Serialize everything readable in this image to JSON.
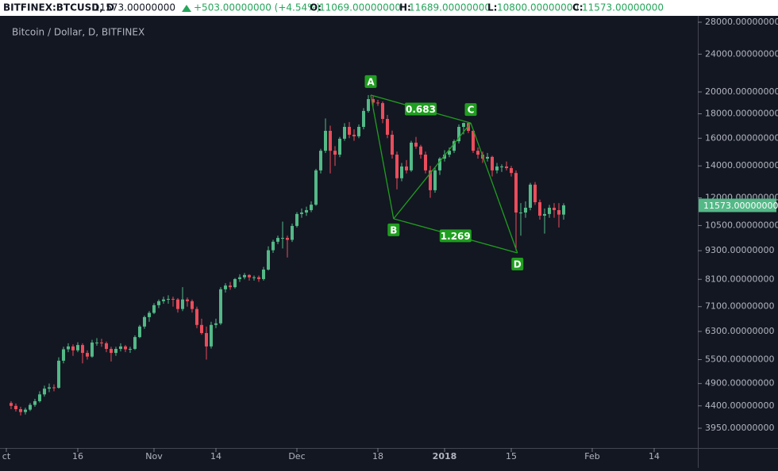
{
  "chart_data": {
    "type": "candlestick",
    "symbol": "BITFINEX:BTCUSD, D",
    "last": "11573.00000000",
    "change": "+503.00000000 (+4.54%)",
    "ohlc_header": [
      {
        "label": "O:",
        "value": "11069.00000000"
      },
      {
        "label": "H:",
        "value": "11689.00000000"
      },
      {
        "label": "L:",
        "value": "10800.00000000"
      },
      {
        "label": "C:",
        "value": "11573.00000000"
      }
    ],
    "title": "Bitcoin / Dollar, D, BITFINEX",
    "log": true,
    "up_color": "#53b987",
    "down_color": "#eb4d5c",
    "xlim": [
      -1.33,
      145
    ],
    "ylim": [
      3590,
      28870
    ],
    "xticks": [
      {
        "value": 0,
        "label": "ct"
      },
      {
        "value": 15,
        "label": "16"
      },
      {
        "value": 31,
        "label": "Nov"
      },
      {
        "value": 44,
        "label": "14"
      },
      {
        "value": 61,
        "label": "Dec"
      },
      {
        "value": 78,
        "label": "18"
      },
      {
        "value": 92,
        "label": "2018"
      },
      {
        "value": 106,
        "label": "15"
      },
      {
        "value": 123,
        "label": "Feb"
      },
      {
        "value": 136,
        "label": "14"
      }
    ],
    "yticks": [
      {
        "value": 28000,
        "label": "28000.00000000"
      },
      {
        "value": 24000,
        "label": "24000.00000000"
      },
      {
        "value": 20000,
        "label": "20000.00000000"
      },
      {
        "value": 18000,
        "label": "18000.00000000"
      },
      {
        "value": 16000,
        "label": "16000.00000000"
      },
      {
        "value": 14000,
        "label": "14000.00000000"
      },
      {
        "value": 12000,
        "label": "12000.00000000"
      },
      {
        "value": 10500,
        "label": "10500.00000000"
      },
      {
        "value": 9300,
        "label": "9300.00000000"
      },
      {
        "value": 8100,
        "label": "8100.00000000"
      },
      {
        "value": 7100,
        "label": "7100.00000000"
      },
      {
        "value": 6300,
        "label": "6300.00000000"
      },
      {
        "value": 5500,
        "label": "5500.00000000"
      },
      {
        "value": 4900,
        "label": "4900.00000000"
      },
      {
        "value": 4400,
        "label": "4400.00000000"
      },
      {
        "value": 3950,
        "label": "3950.00000000"
      }
    ],
    "last_price_tag": {
      "value": 11573,
      "label": "11573.00000000",
      "color": "#53b987"
    },
    "x": [
      1,
      2,
      3,
      4,
      5,
      6,
      7,
      8,
      9,
      10,
      11,
      12,
      13,
      14,
      15,
      16,
      17,
      18,
      19,
      20,
      21,
      22,
      23,
      24,
      25,
      26,
      27,
      28,
      29,
      30,
      31,
      32,
      33,
      34,
      35,
      36,
      37,
      38,
      39,
      40,
      41,
      42,
      43,
      44,
      45,
      46,
      47,
      48,
      49,
      50,
      51,
      52,
      53,
      54,
      55,
      56,
      57,
      58,
      59,
      60,
      61,
      62,
      63,
      64,
      65,
      66,
      67,
      68,
      69,
      70,
      71,
      72,
      73,
      74,
      75,
      76,
      77,
      78,
      79,
      80,
      81,
      82,
      83,
      84,
      85,
      86,
      87,
      88,
      89,
      90,
      91,
      92,
      93,
      94,
      95,
      96,
      97,
      98,
      99,
      100,
      101,
      102,
      103,
      104,
      105,
      106,
      107,
      108,
      109,
      110,
      111,
      112,
      113,
      114,
      115,
      116,
      117
    ],
    "ohlc": [
      [
        4460,
        4500,
        4330,
        4400
      ],
      [
        4400,
        4450,
        4280,
        4330
      ],
      [
        4330,
        4380,
        4200,
        4270
      ],
      [
        4270,
        4360,
        4220,
        4320
      ],
      [
        4320,
        4460,
        4290,
        4420
      ],
      [
        4420,
        4550,
        4380,
        4500
      ],
      [
        4500,
        4720,
        4470,
        4650
      ],
      [
        4650,
        4850,
        4600,
        4780
      ],
      [
        4780,
        4900,
        4700,
        4810
      ],
      [
        4810,
        4880,
        4720,
        4800
      ],
      [
        4800,
        5560,
        4780,
        5470
      ],
      [
        5470,
        5850,
        5400,
        5780
      ],
      [
        5780,
        5950,
        5700,
        5860
      ],
      [
        5860,
        5920,
        5600,
        5750
      ],
      [
        5750,
        5980,
        5700,
        5900
      ],
      [
        5900,
        5950,
        5400,
        5680
      ],
      [
        5680,
        5750,
        5500,
        5580
      ],
      [
        5580,
        6050,
        5550,
        5970
      ],
      [
        5970,
        6100,
        5880,
        5970
      ],
      [
        5970,
        6080,
        5850,
        5950
      ],
      [
        5950,
        6000,
        5700,
        5790
      ],
      [
        5790,
        5850,
        5450,
        5680
      ],
      [
        5680,
        5850,
        5600,
        5790
      ],
      [
        5790,
        5950,
        5720,
        5860
      ],
      [
        5860,
        5900,
        5700,
        5780
      ],
      [
        5780,
        5850,
        5680,
        5790
      ],
      [
        5790,
        6180,
        5760,
        6130
      ],
      [
        6130,
        6500,
        6100,
        6450
      ],
      [
        6450,
        6800,
        6380,
        6750
      ],
      [
        6750,
        6950,
        6600,
        6890
      ],
      [
        6890,
        7220,
        6850,
        7150
      ],
      [
        7150,
        7350,
        7050,
        7290
      ],
      [
        7290,
        7450,
        7200,
        7350
      ],
      [
        7350,
        7500,
        7200,
        7370
      ],
      [
        7370,
        7450,
        7100,
        7350
      ],
      [
        7350,
        7400,
        6900,
        7020
      ],
      [
        7020,
        7800,
        6950,
        7350
      ],
      [
        7350,
        7420,
        7100,
        7290
      ],
      [
        7290,
        7350,
        6900,
        7020
      ],
      [
        7020,
        7100,
        6400,
        6500
      ],
      [
        6500,
        6700,
        6200,
        6250
      ],
      [
        6250,
        6450,
        5500,
        5860
      ],
      [
        5860,
        6600,
        5800,
        6500
      ],
      [
        6500,
        6700,
        6400,
        6550
      ],
      [
        6550,
        7800,
        6500,
        7720
      ],
      [
        7720,
        7950,
        7600,
        7860
      ],
      [
        7860,
        8000,
        7700,
        7800
      ],
      [
        7800,
        8150,
        7750,
        8110
      ],
      [
        8110,
        8300,
        8000,
        8180
      ],
      [
        8180,
        8350,
        8100,
        8270
      ],
      [
        8270,
        8300,
        8050,
        8180
      ],
      [
        8180,
        8250,
        8050,
        8180
      ],
      [
        8180,
        8250,
        8000,
        8110
      ],
      [
        8110,
        8600,
        8050,
        8490
      ],
      [
        8490,
        9500,
        8450,
        9320
      ],
      [
        9320,
        9800,
        9200,
        9710
      ],
      [
        9710,
        10000,
        9600,
        9890
      ],
      [
        9890,
        10700,
        9400,
        9890
      ],
      [
        9890,
        10000,
        9000,
        9800
      ],
      [
        9800,
        10600,
        9700,
        10480
      ],
      [
        10480,
        11200,
        10400,
        11100
      ],
      [
        11100,
        11400,
        10900,
        11180
      ],
      [
        11180,
        11500,
        11000,
        11310
      ],
      [
        11310,
        11800,
        11200,
        11610
      ],
      [
        11610,
        13800,
        11550,
        13700
      ],
      [
        13700,
        15200,
        13500,
        15060
      ],
      [
        15060,
        17600,
        14900,
        16580
      ],
      [
        16580,
        17000,
        13500,
        15060
      ],
      [
        15060,
        15400,
        14000,
        14780
      ],
      [
        14780,
        16100,
        14600,
        15960
      ],
      [
        15960,
        17200,
        15800,
        16900
      ],
      [
        16900,
        17300,
        16000,
        16270
      ],
      [
        16270,
        16700,
        15800,
        16150
      ],
      [
        16150,
        17100,
        16000,
        16900
      ],
      [
        16900,
        18500,
        16700,
        18250
      ],
      [
        18250,
        19700,
        18100,
        19320
      ],
      [
        19320,
        19600,
        18600,
        19000
      ],
      [
        19000,
        19250,
        18700,
        18950
      ],
      [
        18950,
        19100,
        17200,
        17560
      ],
      [
        17560,
        17900,
        16000,
        16270
      ],
      [
        16270,
        16600,
        14500,
        14780
      ],
      [
        14780,
        15000,
        12500,
        13190
      ],
      [
        13190,
        14200,
        13000,
        13960
      ],
      [
        13960,
        14400,
        13500,
        13700
      ],
      [
        13700,
        15800,
        13600,
        15660
      ],
      [
        15660,
        16100,
        15200,
        15370
      ],
      [
        15370,
        15500,
        14500,
        14780
      ],
      [
        14780,
        15000,
        13500,
        13700
      ],
      [
        13700,
        14000,
        12000,
        12450
      ],
      [
        12450,
        13900,
        12300,
        13700
      ],
      [
        13700,
        14600,
        13400,
        14500
      ],
      [
        14500,
        15100,
        14300,
        14780
      ],
      [
        14780,
        15300,
        14600,
        15060
      ],
      [
        15060,
        15900,
        14900,
        15770
      ],
      [
        15770,
        17100,
        15600,
        16900
      ],
      [
        16900,
        17250,
        16300,
        17220
      ],
      [
        17220,
        17300,
        16400,
        16580
      ],
      [
        16580,
        16700,
        14900,
        15060
      ],
      [
        15060,
        15300,
        14500,
        14780
      ],
      [
        14780,
        15000,
        14200,
        14500
      ],
      [
        14500,
        14900,
        14300,
        14620
      ],
      [
        14620,
        14700,
        13300,
        13700
      ],
      [
        13700,
        14200,
        13500,
        13960
      ],
      [
        13960,
        14100,
        13600,
        13960
      ],
      [
        13960,
        14300,
        13700,
        13850
      ],
      [
        13850,
        14000,
        13300,
        13530
      ],
      [
        13530,
        13700,
        9300,
        11180
      ],
      [
        11180,
        11700,
        10000,
        11180
      ],
      [
        11180,
        11800,
        10900,
        11440
      ],
      [
        11440,
        12900,
        11300,
        12790
      ],
      [
        12790,
        12950,
        11600,
        11750
      ],
      [
        11750,
        11900,
        10800,
        11010
      ],
      [
        11010,
        11400,
        10100,
        11100
      ],
      [
        11100,
        11600,
        10900,
        11440
      ],
      [
        11440,
        11700,
        10900,
        11310
      ],
      [
        11310,
        11700,
        10400,
        11069
      ],
      [
        11069,
        11689,
        10800,
        11573
      ]
    ],
    "pattern": {
      "color": "#1f9e1f",
      "points": [
        {
          "label": "A",
          "x": 76.5,
          "y": 19700
        },
        {
          "label": "B",
          "x": 81.3,
          "y": 10850
        },
        {
          "label": "C",
          "x": 97.5,
          "y": 17220
        },
        {
          "label": "D",
          "x": 107.3,
          "y": 9200
        }
      ],
      "ratios": [
        "0.683",
        "1.269"
      ]
    }
  }
}
